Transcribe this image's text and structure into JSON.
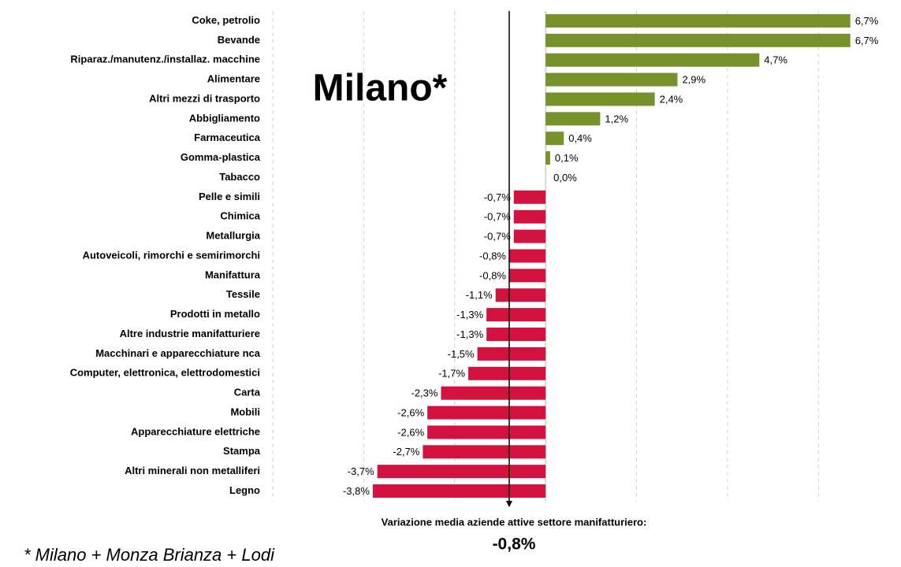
{
  "chart_data": {
    "type": "bar",
    "orientation": "horizontal",
    "title": "Milano*",
    "footnote": "* Milano + Monza Brianza + Lodi",
    "annotation": "Variazione media aziende attive settore manifatturiero:",
    "average": -0.8,
    "average_label": "-0,8%",
    "categories": [
      "Coke, petrolio",
      "Bevande",
      "Riparaz./manutenz./installaz. macchine",
      "Alimentare",
      "Altri mezzi di trasporto",
      "Abbigliamento",
      "Farmaceutica",
      "Gomma-plastica",
      "Tabacco",
      "Pelle e simili",
      "Chimica",
      "Metallurgia",
      "Autoveicoli, rimorchi e semirimorchi",
      "Manifattura",
      "Tessile",
      "Prodotti in metallo",
      "Altre industrie manifatturiere",
      "Macchinari e apparecchiature nca",
      "Computer, elettronica, elettrodomestici",
      "Carta",
      "Mobili",
      "Apparecchiature elettriche",
      "Stampa",
      "Altri minerali non metalliferi",
      "Legno"
    ],
    "values": [
      6.7,
      6.7,
      4.7,
      2.9,
      2.4,
      1.2,
      0.4,
      0.1,
      0.0,
      -0.7,
      -0.7,
      -0.7,
      -0.8,
      -0.8,
      -1.1,
      -1.3,
      -1.3,
      -1.5,
      -1.7,
      -2.3,
      -2.6,
      -2.6,
      -2.7,
      -3.7,
      -3.8
    ],
    "value_labels": [
      "6,7%",
      "6,7%",
      "4,7%",
      "2,9%",
      "2,4%",
      "1,2%",
      "0,4%",
      "0,1%",
      "0,0%",
      "-0,7%",
      "-0,7%",
      "-0,7%",
      "-0,8%",
      "-0,8%",
      "-1,1%",
      "-1,3%",
      "-1,3%",
      "-1,5%",
      "-1,7%",
      "-2,3%",
      "-2,6%",
      "-2,6%",
      "-2,7%",
      "-3,7%",
      "-3,8%"
    ],
    "color_positive": "#77922a",
    "color_negative": "#d4123f",
    "xlim": [
      -6,
      7
    ],
    "xticks": [
      -6,
      -4,
      -2,
      0,
      2,
      4,
      6
    ],
    "grid": true
  }
}
